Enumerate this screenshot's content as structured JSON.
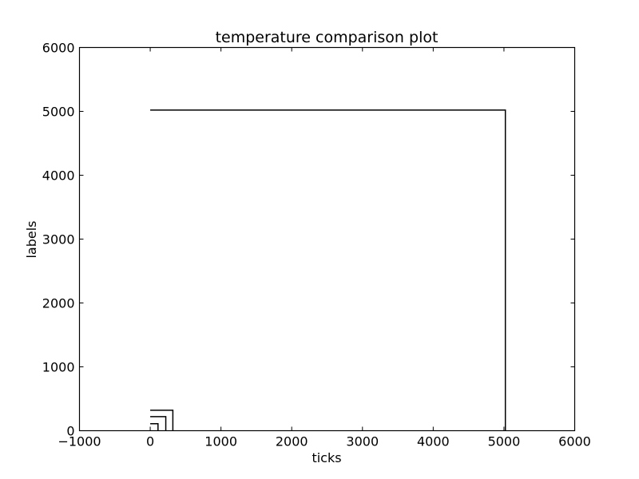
{
  "chart_data": {
    "type": "line",
    "title": "temperature comparison plot",
    "xlabel": "ticks",
    "ylabel": "labels",
    "xlim": [
      -1000,
      6000
    ],
    "ylim": [
      0,
      6000
    ],
    "xticks": [
      -1000,
      0,
      1000,
      2000,
      3000,
      4000,
      5000,
      6000
    ],
    "yticks": [
      0,
      1000,
      2000,
      3000,
      4000,
      5000,
      6000
    ],
    "xtick_labels": [
      "−1000",
      "0",
      "1000",
      "2000",
      "3000",
      "4000",
      "5000",
      "6000"
    ],
    "ytick_labels": [
      "0",
      "1000",
      "2000",
      "3000",
      "4000",
      "5000",
      "6000"
    ],
    "grid": false,
    "line_color": "#000000",
    "series": [
      {
        "x": [
          0,
          110,
          110
        ],
        "y": [
          110,
          110,
          0
        ]
      },
      {
        "x": [
          0,
          220,
          220
        ],
        "y": [
          220,
          220,
          0
        ]
      },
      {
        "x": [
          0,
          320,
          320
        ],
        "y": [
          320,
          320,
          0
        ]
      },
      {
        "x": [
          0,
          5020,
          5020
        ],
        "y": [
          5020,
          5020,
          0
        ]
      }
    ]
  }
}
